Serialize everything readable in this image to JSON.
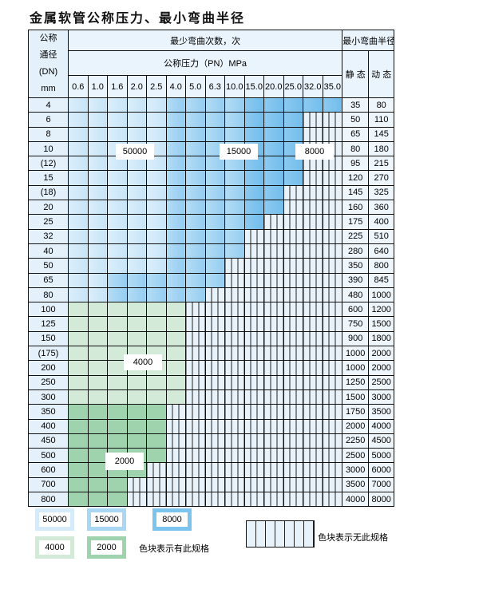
{
  "title": "金属软管公称压力、最小弯曲半径",
  "header": {
    "dn_lines": [
      "公称",
      "通径",
      "(DN)",
      "mm"
    ],
    "bend_count": "最少弯曲次数，次",
    "pressure": "公称压力（PN）MPa",
    "min_radius": "最小弯曲半径",
    "static": "静 态",
    "dynamic": "动 态",
    "pressures": [
      "0.6",
      "1.0",
      "1.6",
      "2.0",
      "2.5",
      "4.0",
      "5.0",
      "6.3",
      "10.0",
      "15.0",
      "20.0",
      "25.0",
      "32.0",
      "35.0"
    ]
  },
  "tiers": {
    "A": "50000",
    "B": "15000",
    "C": "8000",
    "D": "4000",
    "E": "2000"
  },
  "colors": {
    "A": "#cfe7f8",
    "B": "#a6d6f3",
    "C": "#7cc4ee",
    "D": "#d3ead8",
    "E": "#9fd3ad",
    "none": "#e8f2fb"
  },
  "rows": [
    {
      "dn": "4",
      "cells": "AAAAABBBBCCCCC",
      "static": "35",
      "dynamic": "80"
    },
    {
      "dn": "6",
      "cells": "AAAAABBBBCCC--",
      "static": "50",
      "dynamic": "110"
    },
    {
      "dn": "8",
      "cells": "AAAAABBBBCCC--",
      "static": "65",
      "dynamic": "145"
    },
    {
      "dn": "10",
      "cells": "AAAAABBBBCCC--",
      "static": "80",
      "dynamic": "180"
    },
    {
      "dn": "(12)",
      "cells": "AAAAABBBBCCC--",
      "static": "95",
      "dynamic": "215"
    },
    {
      "dn": "15",
      "cells": "AAAAABBBBCCC--",
      "static": "120",
      "dynamic": "270"
    },
    {
      "dn": "(18)",
      "cells": "AAAAABBBBCC---",
      "static": "145",
      "dynamic": "325"
    },
    {
      "dn": "20",
      "cells": "AAAAABBBBCC---",
      "static": "160",
      "dynamic": "360"
    },
    {
      "dn": "25",
      "cells": "AAAAABBBBC----",
      "static": "175",
      "dynamic": "400"
    },
    {
      "dn": "32",
      "cells": "AAAAABBBB-----",
      "static": "225",
      "dynamic": "510"
    },
    {
      "dn": "40",
      "cells": "AAAAABBBB-----",
      "static": "280",
      "dynamic": "640"
    },
    {
      "dn": "50",
      "cells": "AAAAABBB------",
      "static": "350",
      "dynamic": "800"
    },
    {
      "dn": "65",
      "cells": "AABBBBBB------",
      "static": "390",
      "dynamic": "845"
    },
    {
      "dn": "80",
      "cells": "AABBBBB-------",
      "static": "480",
      "dynamic": "1000"
    },
    {
      "dn": "100",
      "cells": "DDDDDD--------",
      "static": "600",
      "dynamic": "1200"
    },
    {
      "dn": "125",
      "cells": "DDDDDD--------",
      "static": "750",
      "dynamic": "1500"
    },
    {
      "dn": "150",
      "cells": "DDDDDD--------",
      "static": "900",
      "dynamic": "1800"
    },
    {
      "dn": "(175)",
      "cells": "DDDDDD--------",
      "static": "1000",
      "dynamic": "2000"
    },
    {
      "dn": "200",
      "cells": "DDDDDD--------",
      "static": "1000",
      "dynamic": "2000"
    },
    {
      "dn": "250",
      "cells": "DDDDDD--------",
      "static": "1250",
      "dynamic": "2500"
    },
    {
      "dn": "300",
      "cells": "DDDDDD--------",
      "static": "1500",
      "dynamic": "3000"
    },
    {
      "dn": "350",
      "cells": "EEEEE---------",
      "static": "1750",
      "dynamic": "3500"
    },
    {
      "dn": "400",
      "cells": "EEEEE---------",
      "static": "2000",
      "dynamic": "4000"
    },
    {
      "dn": "450",
      "cells": "EEEEE---------",
      "static": "2250",
      "dynamic": "4500"
    },
    {
      "dn": "500",
      "cells": "EEEEE---------",
      "static": "2500",
      "dynamic": "5000"
    },
    {
      "dn": "600",
      "cells": "EEEE----------",
      "static": "3000",
      "dynamic": "6000"
    },
    {
      "dn": "700",
      "cells": "EEE-----------",
      "static": "3500",
      "dynamic": "7000"
    },
    {
      "dn": "800",
      "cells": "EEE-----------",
      "static": "4000",
      "dynamic": "8000"
    }
  ],
  "legend": {
    "has_spec": "色块表示有此规格",
    "no_spec": "色块表示无此规格"
  }
}
